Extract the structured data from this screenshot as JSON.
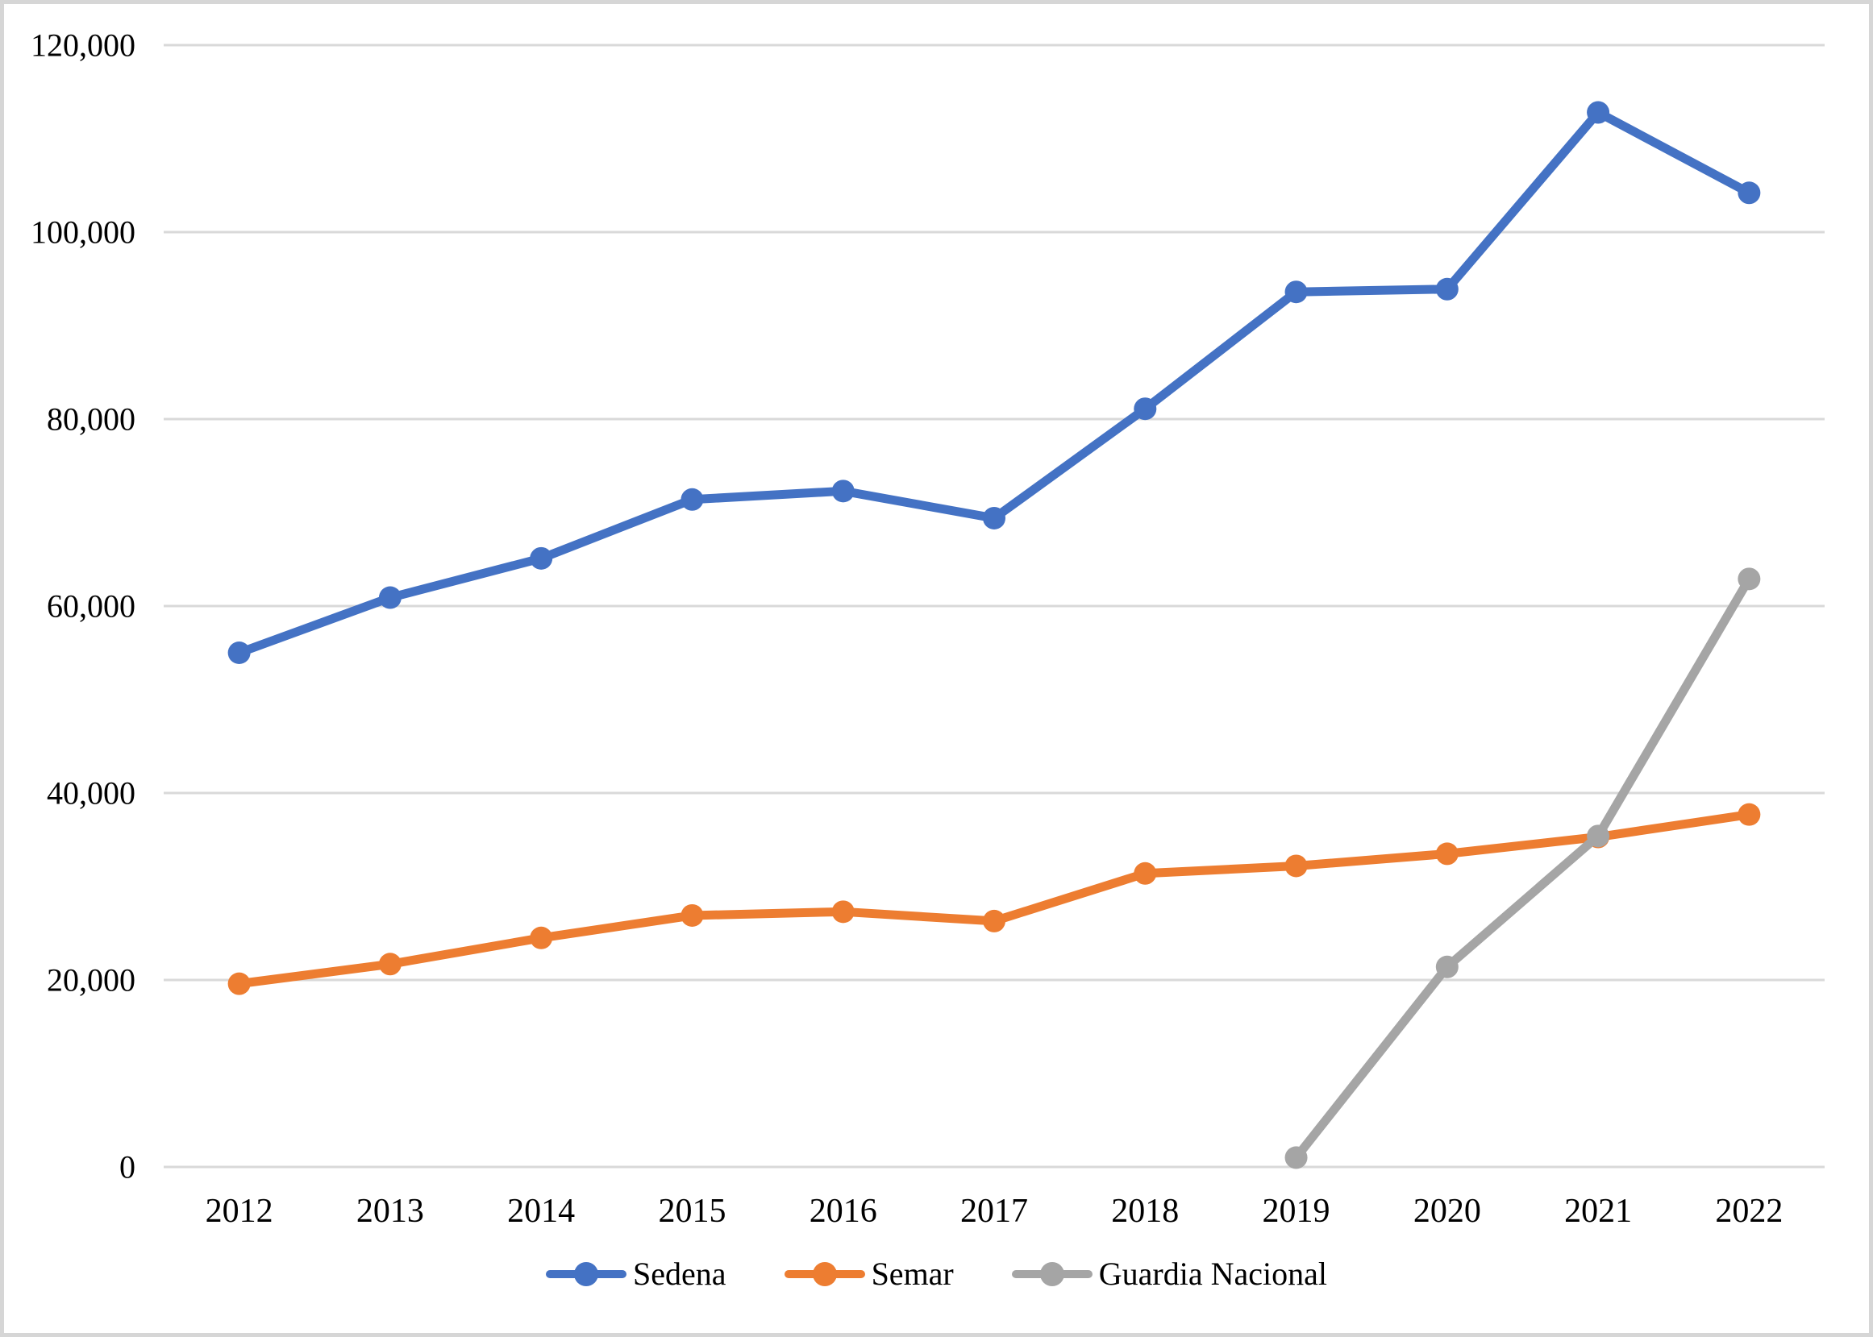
{
  "figure": {
    "background_color": "#ffffff",
    "border_color": "#d6d6d6",
    "gridline_color": "#d9d9d9",
    "text_color": "#000000"
  },
  "chart_data": {
    "type": "line",
    "title": "",
    "xlabel": "",
    "ylabel": "",
    "categories": [
      "2012",
      "2013",
      "2014",
      "2015",
      "2016",
      "2017",
      "2018",
      "2019",
      "2020",
      "2021",
      "2022"
    ],
    "series": [
      {
        "name": "Sedena",
        "color": "#4472C4",
        "values": [
          55000,
          60900,
          65100,
          71400,
          72300,
          69400,
          81100,
          93600,
          93900,
          112800,
          104200
        ]
      },
      {
        "name": "Semar",
        "color": "#ED7D31",
        "values": [
          19600,
          21700,
          24500,
          26900,
          27300,
          26300,
          31400,
          32200,
          33500,
          35300,
          37700
        ]
      },
      {
        "name": "Guardia Nacional",
        "color": "#A5A5A5",
        "values": [
          null,
          null,
          null,
          null,
          null,
          null,
          null,
          1000,
          21400,
          35400,
          62900
        ]
      }
    ],
    "ylim": [
      0,
      120000
    ],
    "ytick_interval": 20000,
    "ytick_labels": [
      "0",
      "20,000",
      "40,000",
      "60,000",
      "80,000",
      "100,000",
      "120,000"
    ],
    "grid": "horizontal",
    "legend_position": "bottom",
    "marker": "circle"
  }
}
